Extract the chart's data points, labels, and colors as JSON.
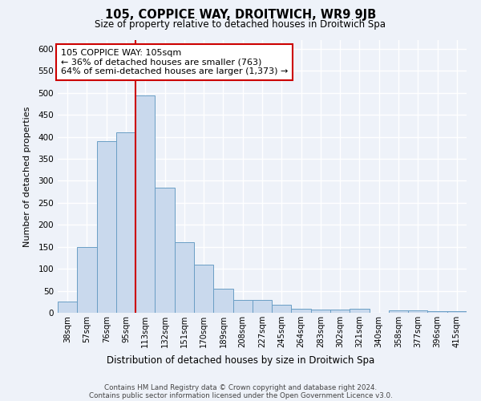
{
  "title": "105, COPPICE WAY, DROITWICH, WR9 9JB",
  "subtitle": "Size of property relative to detached houses in Droitwich Spa",
  "xlabel": "Distribution of detached houses by size in Droitwich Spa",
  "ylabel": "Number of detached properties",
  "bar_labels": [
    "38sqm",
    "57sqm",
    "76sqm",
    "95sqm",
    "113sqm",
    "132sqm",
    "151sqm",
    "170sqm",
    "189sqm",
    "208sqm",
    "227sqm",
    "245sqm",
    "264sqm",
    "283sqm",
    "302sqm",
    "321sqm",
    "340sqm",
    "358sqm",
    "377sqm",
    "396sqm",
    "415sqm"
  ],
  "bar_values": [
    25,
    150,
    390,
    410,
    495,
    285,
    160,
    110,
    55,
    30,
    30,
    18,
    10,
    7,
    7,
    10,
    0,
    5,
    5,
    3,
    3
  ],
  "bar_color": "#c9d9ed",
  "bar_edge_color": "#6a9ec5",
  "vline_x": 3.5,
  "vline_color": "#cc0000",
  "ylim": [
    0,
    620
  ],
  "yticks": [
    0,
    50,
    100,
    150,
    200,
    250,
    300,
    350,
    400,
    450,
    500,
    550,
    600
  ],
  "annotation_text": "105 COPPICE WAY: 105sqm\n← 36% of detached houses are smaller (763)\n64% of semi-detached houses are larger (1,373) →",
  "annotation_box_color": "#ffffff",
  "annotation_box_edge": "#cc0000",
  "footer_line1": "Contains HM Land Registry data © Crown copyright and database right 2024.",
  "footer_line2": "Contains public sector information licensed under the Open Government Licence v3.0.",
  "background_color": "#eef2f9",
  "grid_color": "#ffffff"
}
